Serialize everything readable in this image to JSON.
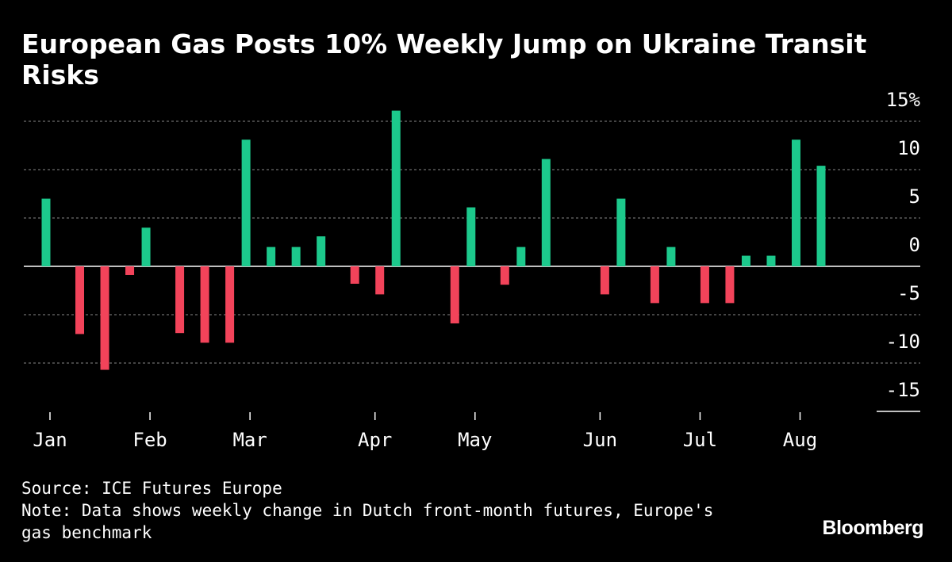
{
  "chart_data": {
    "type": "bar",
    "title": "European Gas Posts 10% Weekly Jump on Ukraine Transit Risks",
    "source": "Source: ICE Futures Europe",
    "note": "Note: Data shows weekly change in Dutch front-month futures, Europe's gas benchmark",
    "brand": "Bloomberg",
    "categories": [
      "Jan",
      null,
      null,
      null,
      "Feb",
      null,
      null,
      null,
      "Mar",
      null,
      null,
      null,
      null,
      "Apr",
      null,
      null,
      null,
      "May",
      null,
      null,
      null,
      null,
      "Jun",
      null,
      null,
      null,
      "Jul",
      null,
      null,
      null,
      "Aug",
      null
    ],
    "values": [
      7.0,
      -7.0,
      -10.7,
      -0.9,
      4.0,
      -6.9,
      -7.9,
      -7.9,
      13.1,
      2.0,
      2.0,
      3.1,
      -1.8,
      -2.9,
      16.1,
      0,
      -5.9,
      6.1,
      -1.9,
      2.0,
      11.1,
      0,
      -2.9,
      7.0,
      -3.8,
      2.0,
      -3.8,
      -3.8,
      1.1,
      1.1,
      13.1,
      10.4
    ],
    "color_positive": "#1cc98c",
    "color_negative": "#f2435a",
    "ylim": [
      -15,
      15
    ],
    "yticks": [
      {
        "value": 15,
        "label": "15%"
      },
      10,
      5,
      0,
      -5,
      -10,
      -15
    ],
    "grid": true
  }
}
